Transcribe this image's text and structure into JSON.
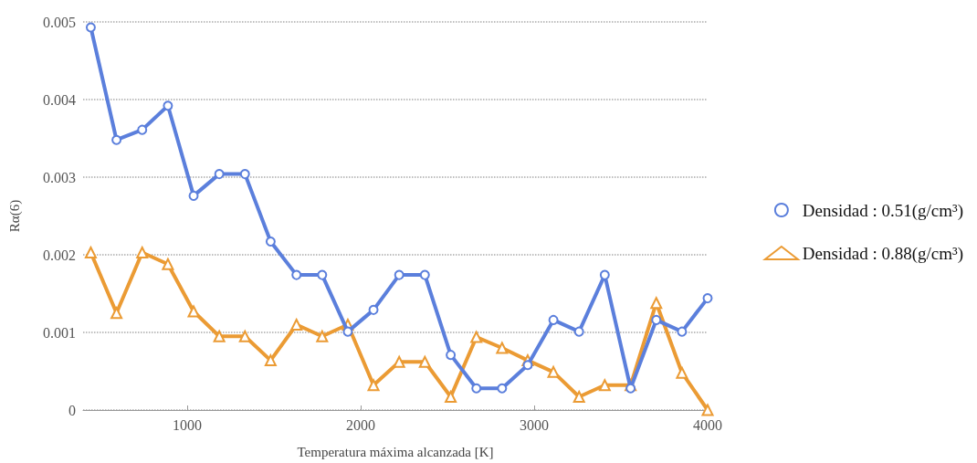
{
  "chart_data": {
    "type": "line",
    "xlabel": "Temperatura máxima alcanzada [K]",
    "ylabel": "Rα(6)",
    "x": [
      444.4,
      592.6,
      740.7,
      888.9,
      1037,
      1185,
      1333,
      1481,
      1630,
      1778,
      1926,
      2074,
      2222,
      2370,
      2519,
      2667,
      2815,
      2963,
      3111,
      3259,
      3407,
      3556,
      3704,
      3852,
      4000
    ],
    "series": [
      {
        "name": "Densidad : 0.51(g/cm³)",
        "color": "#5b7fdc",
        "marker": "circle",
        "values": [
          0.00493,
          0.00348,
          0.00361,
          0.00392,
          0.00276,
          0.00304,
          0.00304,
          0.00217,
          0.00174,
          0.00174,
          0.00101,
          0.00129,
          0.00174,
          0.00174,
          0.00071,
          0.00028,
          0.00028,
          0.00058,
          0.00116,
          0.00101,
          0.00174,
          0.00028,
          0.00116,
          0.00101,
          0.00144
        ]
      },
      {
        "name": "Densidad : 0.88(g/cm³)",
        "color": "#eb9b34",
        "marker": "triangle",
        "values": [
          0.00203,
          0.00125,
          0.00203,
          0.00188,
          0.00127,
          0.00095,
          0.00095,
          0.00064,
          0.0011,
          0.00095,
          0.0011,
          0.00032,
          0.00062,
          0.00062,
          0.00017,
          0.00094,
          0.0008,
          0.00064,
          0.00049,
          0.00017,
          0.00032,
          0.00032,
          0.00138,
          0.00048,
          0
        ]
      }
    ],
    "xlim": [
      400,
      4000
    ],
    "xticks": [
      1000,
      2000,
      3000,
      4000
    ],
    "ylim": [
      0,
      0.005
    ],
    "yticks": [
      0,
      0.001,
      0.002,
      0.003,
      0.004,
      0.005
    ],
    "grid": "y",
    "legend": "right",
    "line_style": "solid"
  }
}
